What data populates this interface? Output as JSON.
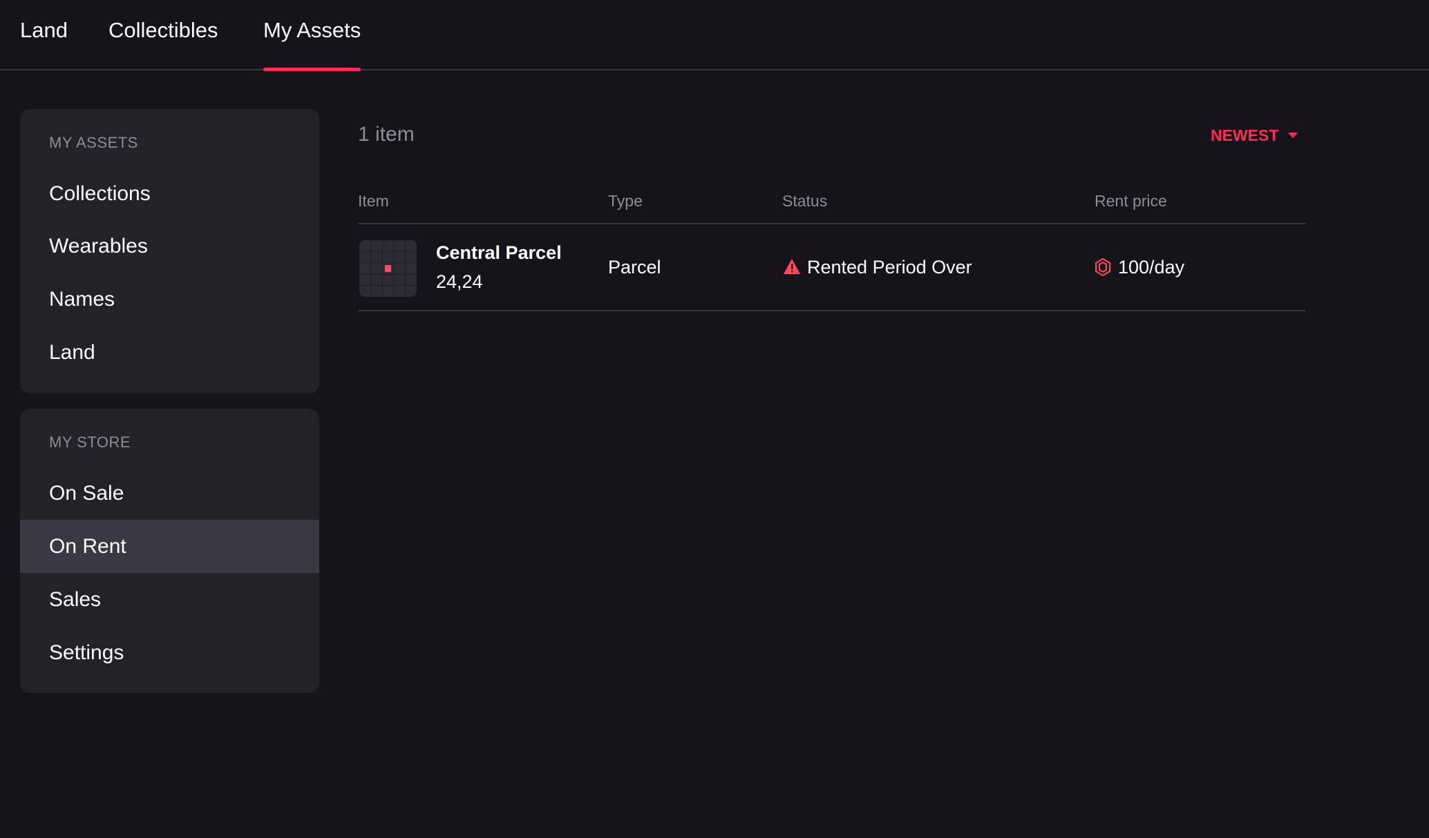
{
  "tabs": [
    {
      "label": "Land"
    },
    {
      "label": "Collectibles"
    },
    {
      "label": "My Assets",
      "active": true
    }
  ],
  "sidebar": {
    "my_assets": {
      "title": "MY ASSETS",
      "items": [
        "Collections",
        "Wearables",
        "Names",
        "Land"
      ]
    },
    "my_store": {
      "title": "MY STORE",
      "items": [
        "On Sale",
        "On Rent",
        "Sales",
        "Settings"
      ],
      "selected": "On Rent"
    }
  },
  "main": {
    "count": "1 item",
    "sort": "NEWEST",
    "columns": [
      "Item",
      "Type",
      "Status",
      "Rent price"
    ],
    "rows": [
      {
        "name": "Central Parcel",
        "coords": "24,24",
        "type": "Parcel",
        "status": "Rented Period Over",
        "status_icon": "warning-icon",
        "price": "100/day",
        "price_icon": "mana-icon"
      }
    ]
  },
  "colors": {
    "accent": "#ff2d55",
    "background": "#16141a",
    "card": "#242129"
  }
}
